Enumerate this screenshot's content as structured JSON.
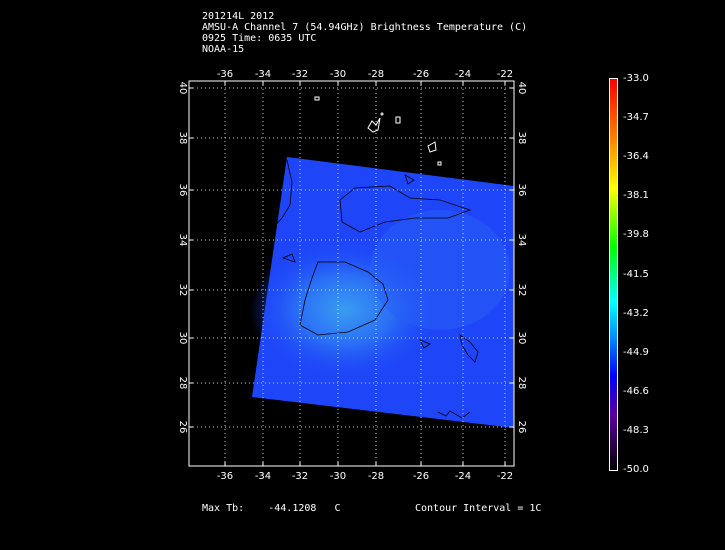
{
  "header": {
    "line1": "201214L 2012",
    "line2": "AMSU-A Channel 7 (54.94GHz) Brightness Temperature (C)",
    "line3": "0925 Time: 0635 UTC",
    "line4": "NOAA-15"
  },
  "map": {
    "lon_ticks": [
      "-36",
      "-34",
      "-32",
      "-30",
      "-28",
      "-26",
      "-24",
      "-22"
    ],
    "lat_ticks": [
      "40",
      "38",
      "36",
      "34",
      "32",
      "30",
      "28",
      "26"
    ],
    "fill_color": "#1e46f8"
  },
  "colorbar": {
    "labels": [
      "-33.0",
      "-34.7",
      "-36.4",
      "-38.1",
      "-39.8",
      "-41.5",
      "-43.2",
      "-44.9",
      "-46.6",
      "-48.3",
      "-50.0"
    ],
    "colors": [
      "#ff0000",
      "#ff8000",
      "#ffff00",
      "#00ff00",
      "#00ffff",
      "#0080ff",
      "#0000ff",
      "#800080",
      "#000000"
    ]
  },
  "footer": {
    "max_label": "Max Tb:",
    "max_value": "-44.1208",
    "max_unit": "C",
    "contour": "Contour Interval = 1C"
  }
}
